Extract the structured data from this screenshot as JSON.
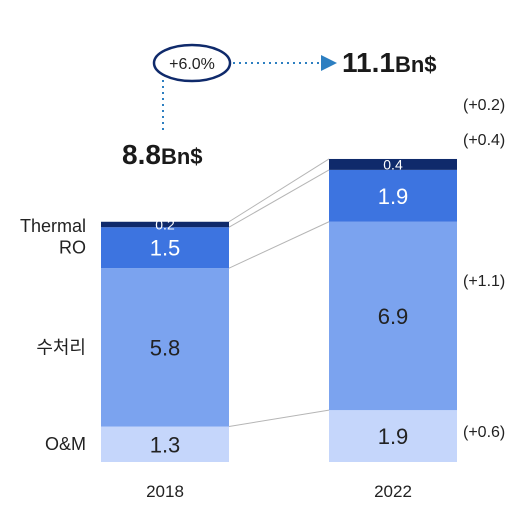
{
  "chart_data": {
    "type": "bar",
    "stacked": true,
    "categories": [
      "2018",
      "2022"
    ],
    "series": [
      {
        "name": "O&M",
        "values": [
          1.3,
          1.9
        ],
        "labels": [
          "1.3",
          "1.9"
        ],
        "color": "#c5d6fb"
      },
      {
        "name": "수처리",
        "values": [
          5.8,
          6.9
        ],
        "labels": [
          "5.8",
          "6.9"
        ],
        "color": "#7ba3ef"
      },
      {
        "name": "RO",
        "values": [
          1.5,
          1.9
        ],
        "labels": [
          "1.5",
          "1.9"
        ],
        "color": "#3d74e0"
      },
      {
        "name": "Thermal",
        "values": [
          0.2,
          0.4
        ],
        "labels": [
          "0.2",
          "0.4"
        ],
        "color": "#0f2a6b"
      }
    ],
    "deltas": [
      "(+0.6)",
      "(+1.1)",
      "(+0.4)",
      "(+0.2)"
    ],
    "totals": [
      {
        "value": "8.8",
        "unit": "Bn$"
      },
      {
        "value": "11.1",
        "unit": "Bn$"
      }
    ],
    "growth": "+6.0%",
    "legend": "none",
    "grid": false
  }
}
